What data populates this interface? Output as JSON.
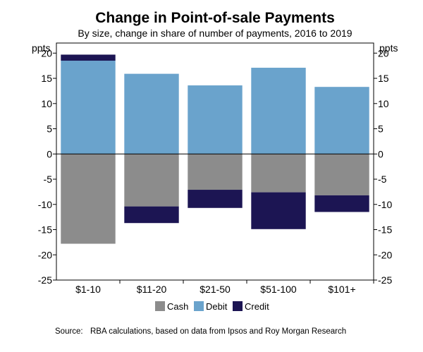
{
  "chart_data": {
    "type": "bar",
    "stacked": true,
    "title": "Change in Point-of-sale Payments",
    "subtitle": "By size, change in share of number of payments, 2016 to 2019",
    "ylabel_left": "ppts",
    "ylabel_right": "ppts",
    "categories": [
      "$1-10",
      "$11-20",
      "$21-50",
      "$51-100",
      "$101+"
    ],
    "series": [
      {
        "name": "Cash",
        "color": "#8c8c8c",
        "values": [
          -17.8,
          -10.4,
          -7.1,
          -7.6,
          -8.2
        ]
      },
      {
        "name": "Debit",
        "color": "#6aa3cc",
        "values": [
          18.5,
          15.9,
          13.6,
          17.1,
          13.3
        ]
      },
      {
        "name": "Credit",
        "color": "#1c1553",
        "values": [
          1.2,
          -3.3,
          -3.6,
          -7.3,
          -3.3
        ]
      }
    ],
    "ylim": [
      -25,
      22
    ],
    "yticks": [
      -25,
      -20,
      -15,
      -10,
      -5,
      0,
      5,
      10,
      15,
      20
    ],
    "grid": false,
    "legend_position": "bottom-center",
    "source_label": "Source:",
    "source_text": "RBA calculations, based on data from Ipsos and Roy Morgan Research"
  }
}
